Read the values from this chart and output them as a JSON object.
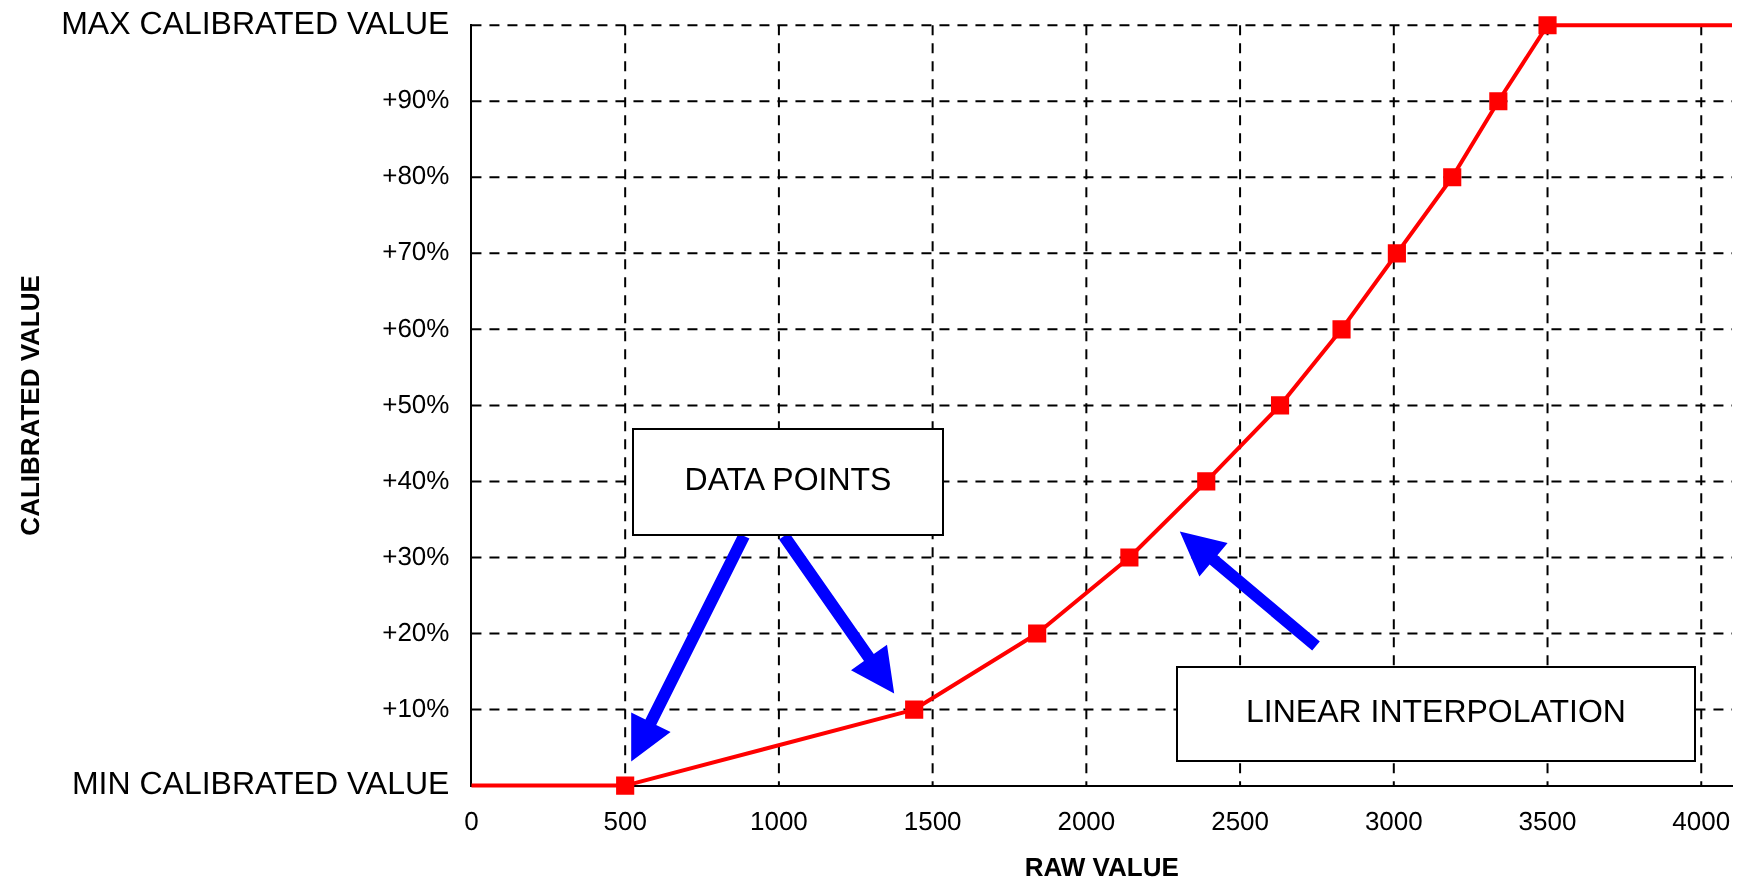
{
  "chart_data": {
    "type": "line",
    "xlabel": "RAW VALUE",
    "ylabel": "CALIBRATED VALUE",
    "series": [
      {
        "color": "#ff0000",
        "x": [
          0,
          500,
          1440,
          1840,
          2140,
          2390,
          2630,
          2830,
          3010,
          3190,
          3340,
          3500,
          4100
        ],
        "values": [
          0,
          0,
          10,
          20,
          30,
          40,
          50,
          60,
          70,
          80,
          90,
          100,
          100
        ]
      }
    ],
    "xlim": [
      0,
      4100
    ],
    "xticks": [
      0,
      500,
      1000,
      1500,
      2000,
      2500,
      3000,
      3500,
      4000
    ],
    "ylim": [
      0,
      100
    ],
    "yticks": [
      {
        "value": 0,
        "label": "MIN CALIBRATED VALUE"
      },
      {
        "value": 10,
        "label": "+10%"
      },
      {
        "value": 20,
        "label": "+20%"
      },
      {
        "value": 30,
        "label": "+30%"
      },
      {
        "value": 40,
        "label": "+40%"
      },
      {
        "value": 50,
        "label": "+50%"
      },
      {
        "value": 60,
        "label": "+60%"
      },
      {
        "value": 70,
        "label": "+70%"
      },
      {
        "value": 80,
        "label": "+80%"
      },
      {
        "value": 90,
        "label": "+90%"
      },
      {
        "value": 100,
        "label": "MAX CALIBRATED VALUE"
      }
    ],
    "grid": true,
    "marker": "square",
    "line_style": "solid",
    "legend": false,
    "annotations": [
      "DATA POINTS",
      "LINEAR INTERPOLATION"
    ]
  }
}
